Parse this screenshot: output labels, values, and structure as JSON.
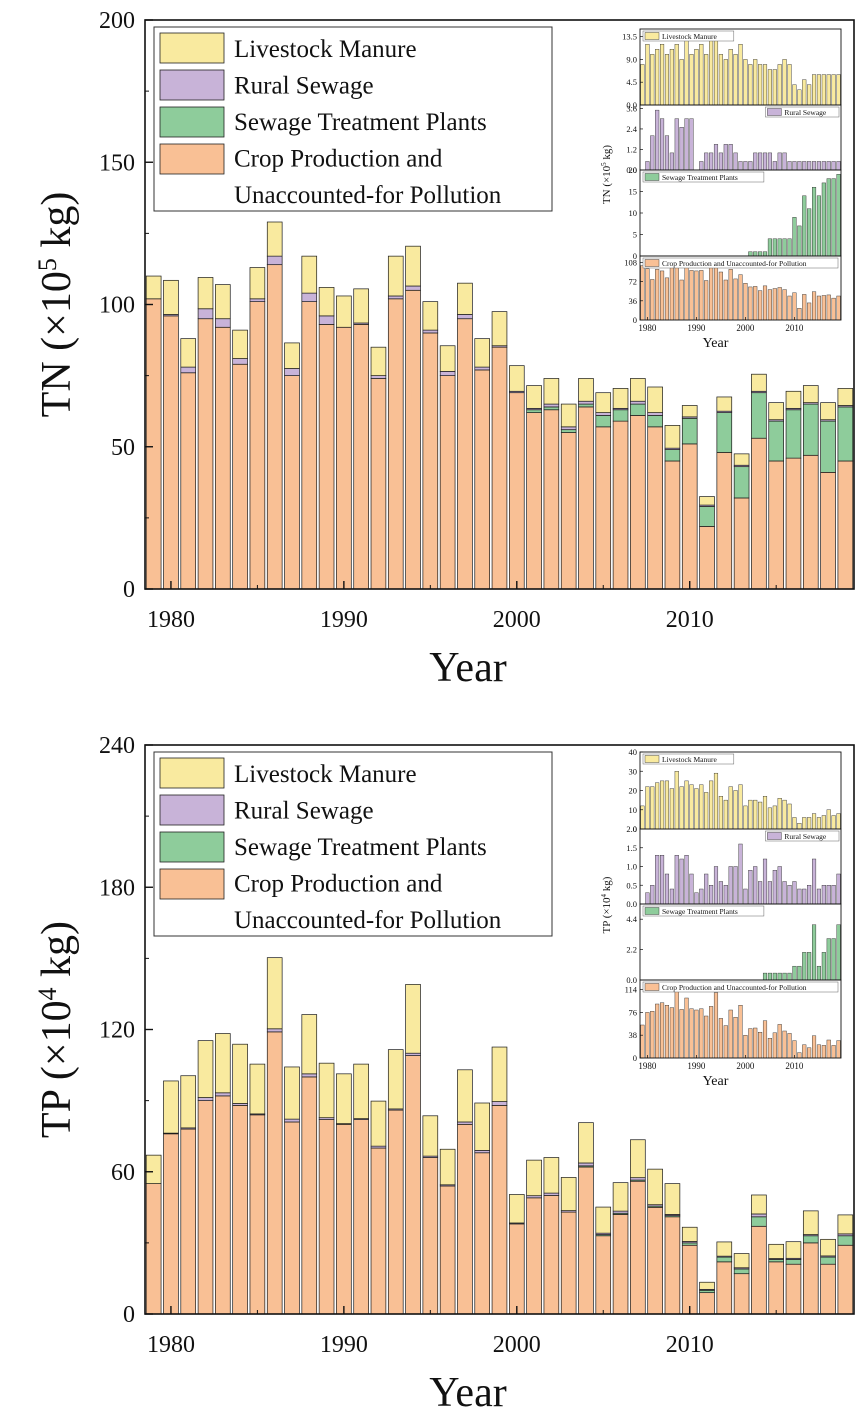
{
  "colors": {
    "livestock": "#f9ea9f",
    "rural": "#c8b3d8",
    "stp": "#8ecc9b",
    "crop": "#f9c095",
    "stroke": "#1a1a1a"
  },
  "chart_data": [
    {
      "type": "bar",
      "stacked": true,
      "id": "tn",
      "ylabel_main": "TN (×10",
      "ylabel_exp": "5",
      "ylabel_unit": " kg)",
      "xlabel": "Year",
      "ylim": [
        0,
        200
      ],
      "yticks": [
        0,
        50,
        100,
        150,
        200
      ],
      "xticks": [
        1980,
        1990,
        2000,
        2010
      ],
      "legend": [
        "Livestock Manure",
        "Rural Sewage",
        "Sewage Treatment Plants",
        "Crop Production and",
        "Unaccounted-for Pollution"
      ],
      "legend_position": "top-left",
      "categories": [
        1979,
        1980,
        1981,
        1982,
        1983,
        1984,
        1985,
        1986,
        1987,
        1988,
        1989,
        1990,
        1991,
        1992,
        1993,
        1994,
        1995,
        1996,
        1997,
        1998,
        1999,
        2000,
        2001,
        2002,
        2003,
        2004,
        2005,
        2006,
        2007,
        2008,
        2009,
        2010,
        2011,
        2012,
        2013,
        2014,
        2015,
        2016,
        2017,
        2018,
        2019
      ],
      "series": [
        {
          "name": "Crop Production and Unaccounted-for Pollution",
          "color_key": "crop",
          "values": [
            102,
            96,
            76,
            95,
            92,
            79,
            101,
            114,
            75,
            101,
            93,
            92,
            93,
            74,
            102,
            105,
            90,
            75,
            95,
            77,
            85,
            69,
            62,
            63,
            55,
            64,
            57,
            59,
            61,
            57,
            45,
            51,
            22,
            48,
            32,
            53,
            45,
            46,
            47,
            41,
            45
          ]
        },
        {
          "name": "Sewage Treatment Plants",
          "color_key": "stp",
          "values": [
            0,
            0,
            0,
            0,
            0,
            0,
            0,
            0,
            0,
            0,
            0,
            0,
            0,
            0,
            0,
            0,
            0,
            0,
            0,
            0,
            0,
            0,
            1,
            1,
            1,
            1,
            4,
            4,
            4,
            4,
            4,
            9,
            7,
            14,
            11,
            16,
            14,
            17,
            18,
            18,
            19
          ]
        },
        {
          "name": "Rural Sewage",
          "color_key": "rural",
          "values": [
            0,
            0.5,
            2,
            3.5,
            3,
            2,
            1,
            3,
            2.5,
            3,
            3,
            0,
            0.5,
            1,
            1,
            1.5,
            1,
            1.5,
            1.5,
            1,
            0.5,
            0.5,
            0.5,
            1,
            1,
            1,
            1,
            0.5,
            1,
            1,
            0.5,
            0.5,
            0.5,
            0.5,
            0.5,
            0.5,
            0.5,
            0.5,
            0.5,
            0.5,
            0.5
          ]
        },
        {
          "name": "Livestock Manure",
          "color_key": "livestock",
          "values": [
            8,
            12,
            10,
            11,
            12,
            10,
            11,
            12,
            9,
            13,
            10,
            11,
            12,
            10,
            14,
            14,
            10,
            9,
            11,
            10,
            12,
            9,
            8,
            9,
            8,
            8,
            7,
            7,
            8,
            9,
            8,
            4,
            3,
            5,
            4,
            6,
            6,
            6,
            6,
            6,
            6
          ]
        }
      ],
      "inset": {
        "xlabel": "Year",
        "ylabel_main": "TN (×10",
        "ylabel_exp": "5",
        "ylabel_unit": " kg)",
        "xticks": [
          1980,
          1990,
          2000,
          2010
        ],
        "panels": [
          {
            "label": "Livestock Manure",
            "color_key": "livestock",
            "ymax": 15,
            "ticks": [
              0.0,
              4.5,
              9.0,
              13.5
            ],
            "tick_labels": [
              "0.0",
              "4.5",
              "9.0",
              "13.5"
            ],
            "series_index": 3
          },
          {
            "label": "Rural Sewage",
            "color_key": "rural",
            "ymax": 3.8,
            "ticks": [
              0.0,
              1.2,
              2.4,
              3.6
            ],
            "tick_labels": [
              "0.0",
              "1.2",
              "2.4",
              "3.6"
            ],
            "series_index": 2
          },
          {
            "label": "Sewage Treatment Plants",
            "color_key": "stp",
            "ymax": 20,
            "ticks": [
              0,
              5,
              10,
              15,
              20
            ],
            "tick_labels": [
              "0",
              "5",
              "10",
              "15",
              "20"
            ],
            "series_index": 1
          },
          {
            "label": "Crop Production and Unaccounted-for Pollution",
            "color_key": "crop",
            "ymax": 120,
            "ticks": [
              0,
              36,
              72,
              108
            ],
            "tick_labels": [
              "0",
              "36",
              "72",
              "108"
            ],
            "series_index": 0
          }
        ]
      }
    },
    {
      "type": "bar",
      "stacked": true,
      "id": "tp",
      "ylabel_main": "TP (×10",
      "ylabel_exp": "4",
      "ylabel_unit": " kg)",
      "xlabel": "Year",
      "ylim": [
        0,
        240
      ],
      "yticks": [
        0,
        60,
        120,
        180,
        240
      ],
      "xticks": [
        1980,
        1990,
        2000,
        2010
      ],
      "legend": [
        "Livestock Manure",
        "Rural Sewage",
        "Sewage Treatment Plants",
        "Crop Production and",
        "Unaccounted-for Pollution"
      ],
      "legend_position": "top-left",
      "categories": [
        1979,
        1980,
        1981,
        1982,
        1983,
        1984,
        1985,
        1986,
        1987,
        1988,
        1989,
        1990,
        1991,
        1992,
        1993,
        1994,
        1995,
        1996,
        1997,
        1998,
        1999,
        2000,
        2001,
        2002,
        2003,
        2004,
        2005,
        2006,
        2007,
        2008,
        2009,
        2010,
        2011,
        2012,
        2013,
        2014,
        2015,
        2016,
        2017,
        2018,
        2019
      ],
      "series": [
        {
          "name": "Crop Production and Unaccounted-for Pollution",
          "color_key": "crop",
          "values": [
            55,
            76,
            78,
            90,
            92,
            88,
            84,
            119,
            81,
            100,
            82,
            80,
            82,
            70,
            86,
            109,
            66,
            54,
            80,
            68,
            88,
            38,
            49,
            50,
            43,
            62,
            33,
            42,
            56,
            45,
            41,
            29,
            9,
            22,
            17,
            37,
            22,
            21,
            30,
            21,
            29
          ]
        },
        {
          "name": "Sewage Treatment Plants",
          "color_key": "stp",
          "values": [
            0,
            0,
            0,
            0,
            0,
            0,
            0,
            0,
            0,
            0,
            0,
            0,
            0,
            0,
            0,
            0,
            0,
            0,
            0,
            0,
            0,
            0,
            0,
            0,
            0,
            0.5,
            0.5,
            0.5,
            0.5,
            0.5,
            0.5,
            1,
            1,
            2,
            2,
            4,
            1,
            2,
            3,
            3,
            4
          ]
        },
        {
          "name": "Rural Sewage",
          "color_key": "rural",
          "values": [
            0,
            0.3,
            0.5,
            1.3,
            1.3,
            0.8,
            0.4,
            1.3,
            1.2,
            1.3,
            0.8,
            0.3,
            0.4,
            0.8,
            0.5,
            1.0,
            0.6,
            0.5,
            1.0,
            1.0,
            1.6,
            0.4,
            0.9,
            1.0,
            0.6,
            1.2,
            0.6,
            0.9,
            1.0,
            0.6,
            0.5,
            0.6,
            0.4,
            0.4,
            0.5,
            1.2,
            0.4,
            0.5,
            0.5,
            0.5,
            0.8
          ]
        },
        {
          "name": "Livestock Manure",
          "color_key": "livestock",
          "values": [
            12,
            22,
            22,
            24,
            25,
            25,
            21,
            30,
            22,
            25,
            23,
            21,
            23,
            19,
            25,
            29,
            17,
            15,
            22,
            20,
            23,
            12,
            15,
            15,
            14,
            17,
            11,
            12,
            16,
            15,
            13,
            6,
            3,
            6,
            6,
            8,
            6,
            7,
            10,
            7,
            8
          ]
        }
      ],
      "inset": {
        "xlabel": "Year",
        "ylabel_main": "TP (×10",
        "ylabel_exp": "4",
        "ylabel_unit": " kg)",
        "xticks": [
          1980,
          1990,
          2000,
          2010
        ],
        "panels": [
          {
            "label": "Livestock Manure",
            "color_key": "livestock",
            "ymax": 40,
            "ticks": [
              0,
              10,
              20,
              30,
              40
            ],
            "tick_labels": [
              "0",
              "10",
              "20",
              "30",
              "40"
            ],
            "series_index": 3
          },
          {
            "label": "Rural Sewage",
            "color_key": "rural",
            "ymax": 2.0,
            "ticks": [
              0.0,
              0.5,
              1.0,
              1.5,
              2.0
            ],
            "tick_labels": [
              "0.0",
              "0.5",
              "1.0",
              "1.5",
              "2.0"
            ],
            "series_index": 2
          },
          {
            "label": "Sewage Treatment Plants",
            "color_key": "stp",
            "ymax": 5.5,
            "ticks": [
              0.0,
              2.2,
              4.4
            ],
            "tick_labels": [
              "0.0",
              "2.2",
              "4.4"
            ],
            "series_index": 1
          },
          {
            "label": "Crop Production and Unaccounted-for Pollution",
            "color_key": "crop",
            "ymax": 130,
            "ticks": [
              0,
              38,
              76,
              114
            ],
            "tick_labels": [
              "0",
              "38",
              "76",
              "114"
            ],
            "series_index": 0
          }
        ]
      }
    }
  ]
}
